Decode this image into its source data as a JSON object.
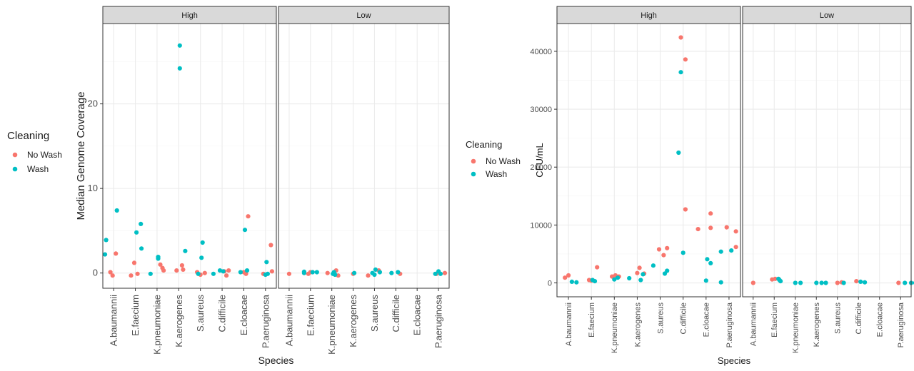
{
  "colors": {
    "no_wash": "#F8766D",
    "wash": "#00BFC4",
    "panel_bg": "#ffffff",
    "grid_major": "#ebebeb",
    "grid_minor": "#f5f5f5",
    "strip_bg": "#d9d9d9",
    "border": "#333333"
  },
  "chart_data": [
    {
      "type": "scatter",
      "xlabel": "Species",
      "ylabel": "Median Genome Coverage",
      "ylim": [
        -1.8,
        29.5
      ],
      "yticks": [
        0,
        10,
        20
      ],
      "grid": true,
      "legend": {
        "title": "Cleaning",
        "position": "left",
        "entries": [
          "No Wash",
          "Wash"
        ]
      },
      "categories": [
        "A.baumannii",
        "E.faecium",
        "K.pneumoniae",
        "K.aerogenes",
        "S.aureus",
        "C.difficile",
        "E.cloacae",
        "P.aeruginosa"
      ],
      "facets": [
        {
          "label": "High",
          "series": [
            {
              "name": "No Wash",
              "points": [
                [
                  "A.baumannii",
                  -0.15,
                  0.1
                ],
                [
                  "A.baumannii",
                  -0.05,
                  -0.3
                ],
                [
                  "A.baumannii",
                  0.1,
                  2.3
                ],
                [
                  "E.faecium",
                  -0.2,
                  -0.3
                ],
                [
                  "E.faecium",
                  -0.05,
                  1.2
                ],
                [
                  "E.faecium",
                  0.1,
                  -0.1
                ],
                [
                  "K.pneumoniae",
                  0.15,
                  1.0
                ],
                [
                  "K.pneumoniae",
                  0.25,
                  0.6
                ],
                [
                  "K.pneumoniae",
                  0.3,
                  0.3
                ],
                [
                  "K.aerogenes",
                  -0.1,
                  0.3
                ],
                [
                  "K.aerogenes",
                  0.15,
                  0.9
                ],
                [
                  "K.aerogenes",
                  0.2,
                  0.4
                ],
                [
                  "S.aureus",
                  -0.15,
                  0.1
                ],
                [
                  "S.aureus",
                  0.0,
                  -0.2
                ],
                [
                  "S.aureus",
                  0.2,
                  0.0
                ],
                [
                  "C.difficile",
                  0.1,
                  0.2
                ],
                [
                  "C.difficile",
                  0.2,
                  -0.3
                ],
                [
                  "C.difficile",
                  0.3,
                  0.3
                ],
                [
                  "E.cloacae",
                  0.0,
                  0.1
                ],
                [
                  "E.cloacae",
                  0.1,
                  -0.1
                ],
                [
                  "E.cloacae",
                  0.2,
                  6.7
                ],
                [
                  "P.aeruginosa",
                  -0.1,
                  -0.1
                ],
                [
                  "P.aeruginosa",
                  0.25,
                  3.3
                ],
                [
                  "P.aeruginosa",
                  0.3,
                  0.2
                ]
              ]
            },
            {
              "name": "Wash",
              "points": [
                [
                  "A.baumannii",
                  -0.4,
                  2.2
                ],
                [
                  "A.baumannii",
                  -0.35,
                  3.9
                ],
                [
                  "A.baumannii",
                  0.15,
                  7.4
                ],
                [
                  "E.faecium",
                  0.05,
                  4.8
                ],
                [
                  "E.faecium",
                  0.25,
                  5.8
                ],
                [
                  "E.faecium",
                  0.28,
                  2.9
                ],
                [
                  "K.pneumoniae",
                  -0.3,
                  -0.1
                ],
                [
                  "K.pneumoniae",
                  0.05,
                  1.7
                ],
                [
                  "K.pneumoniae",
                  0.05,
                  1.9
                ],
                [
                  "K.aerogenes",
                  0.05,
                  26.9
                ],
                [
                  "K.aerogenes",
                  0.05,
                  24.2
                ],
                [
                  "K.aerogenes",
                  0.3,
                  2.6
                ],
                [
                  "S.aureus",
                  0.05,
                  1.8
                ],
                [
                  "S.aureus",
                  0.1,
                  3.6
                ],
                [
                  "S.aureus",
                  -0.1,
                  -0.1
                ],
                [
                  "C.difficile",
                  -0.4,
                  -0.1
                ],
                [
                  "C.difficile",
                  -0.1,
                  0.3
                ],
                [
                  "C.difficile",
                  0.05,
                  0.2
                ],
                [
                  "E.cloacae",
                  -0.15,
                  0.1
                ],
                [
                  "E.cloacae",
                  0.05,
                  5.1
                ],
                [
                  "E.cloacae",
                  0.15,
                  0.3
                ],
                [
                  "P.aeruginosa",
                  0.0,
                  -0.2
                ],
                [
                  "P.aeruginosa",
                  0.05,
                  1.3
                ],
                [
                  "P.aeruginosa",
                  0.1,
                  -0.1
                ]
              ]
            }
          ]
        },
        {
          "label": "Low",
          "series": [
            {
              "name": "No Wash",
              "points": [
                [
                  "A.baumannii",
                  0.0,
                  -0.1
                ],
                [
                  "E.faecium",
                  -0.1,
                  -0.1
                ],
                [
                  "E.faecium",
                  0.0,
                  0.1
                ],
                [
                  "K.pneumoniae",
                  -0.2,
                  0.0
                ],
                [
                  "K.pneumoniae",
                  0.2,
                  0.3
                ],
                [
                  "K.pneumoniae",
                  0.3,
                  -0.3
                ],
                [
                  "K.aerogenes",
                  0.0,
                  -0.1
                ],
                [
                  "S.aureus",
                  -0.3,
                  -0.3
                ],
                [
                  "S.aureus",
                  0.2,
                  0.3
                ],
                [
                  "C.difficile",
                  0.2,
                  -0.1
                ],
                [
                  "P.aeruginosa",
                  -0.1,
                  -0.1
                ],
                [
                  "P.aeruginosa",
                  0.3,
                  0.0
                ]
              ]
            },
            {
              "name": "Wash",
              "points": [
                [
                  "E.faecium",
                  -0.3,
                  0.0
                ],
                [
                  "E.faecium",
                  -0.3,
                  0.15
                ],
                [
                  "E.faecium",
                  0.1,
                  0.1
                ],
                [
                  "E.faecium",
                  0.3,
                  0.1
                ],
                [
                  "K.pneumoniae",
                  0.05,
                  -0.1
                ],
                [
                  "K.pneumoniae",
                  0.1,
                  0.1
                ],
                [
                  "K.pneumoniae",
                  0.15,
                  -0.2
                ],
                [
                  "K.aerogenes",
                  0.05,
                  0.0
                ],
                [
                  "S.aureus",
                  -0.1,
                  0.0
                ],
                [
                  "S.aureus",
                  0.05,
                  0.4
                ],
                [
                  "S.aureus",
                  0.25,
                  0.1
                ],
                [
                  "S.aureus",
                  0.0,
                  -0.2
                ],
                [
                  "C.difficile",
                  -0.2,
                  0.0
                ],
                [
                  "C.difficile",
                  0.1,
                  0.1
                ],
                [
                  "P.aeruginosa",
                  0.0,
                  0.2
                ],
                [
                  "P.aeruginosa",
                  0.1,
                  -0.1
                ],
                [
                  "P.aeruginosa",
                  -0.15,
                  -0.1
                ]
              ]
            }
          ]
        }
      ]
    },
    {
      "type": "scatter",
      "xlabel": "Species",
      "ylabel": "CFU/mL",
      "ylim": [
        -2400,
        44800
      ],
      "yticks": [
        0,
        10000,
        20000,
        30000,
        40000
      ],
      "grid": true,
      "legend": {
        "title": "Cleaning",
        "position": "left",
        "entries": [
          "No Wash",
          "Wash"
        ]
      },
      "categories": [
        "A.baumannii",
        "E.faecium",
        "K.pneumoniae",
        "K.aerogenes",
        "S.aureus",
        "C.difficile",
        "E.cloacae",
        "P.aeruginosa"
      ],
      "facets": [
        {
          "label": "High",
          "series": [
            {
              "name": "No Wash",
              "points": [
                [
                  "A.baumannii",
                  -0.15,
                  900
                ],
                [
                  "A.baumannii",
                  0.0,
                  1300
                ],
                [
                  "E.faecium",
                  -0.1,
                  500
                ],
                [
                  "E.faecium",
                  0.0,
                  400
                ],
                [
                  "E.faecium",
                  0.25,
                  2700
                ],
                [
                  "K.pneumoniae",
                  -0.1,
                  1100
                ],
                [
                  "K.pneumoniae",
                  0.05,
                  1300
                ],
                [
                  "K.pneumoniae",
                  0.2,
                  1100
                ],
                [
                  "K.aerogenes",
                  0.0,
                  1700
                ],
                [
                  "K.aerogenes",
                  0.1,
                  2600
                ],
                [
                  "K.aerogenes",
                  0.3,
                  1600
                ],
                [
                  "S.aureus",
                  -0.05,
                  5800
                ],
                [
                  "S.aureus",
                  0.15,
                  4800
                ],
                [
                  "S.aureus",
                  0.3,
                  6000
                ],
                [
                  "C.difficile",
                  -0.1,
                  42400
                ],
                [
                  "C.difficile",
                  0.1,
                  38600
                ],
                [
                  "C.difficile",
                  0.1,
                  12700
                ],
                [
                  "E.cloacae",
                  -0.35,
                  9300
                ],
                [
                  "E.cloacae",
                  0.2,
                  12000
                ],
                [
                  "E.cloacae",
                  0.2,
                  9500
                ],
                [
                  "P.aeruginosa",
                  -0.1,
                  9600
                ],
                [
                  "P.aeruginosa",
                  0.3,
                  8900
                ],
                [
                  "P.aeruginosa",
                  0.3,
                  6200
                ]
              ]
            },
            {
              "name": "Wash",
              "points": [
                [
                  "A.baumannii",
                  0.15,
                  200
                ],
                [
                  "A.baumannii",
                  0.35,
                  100
                ],
                [
                  "E.faecium",
                  0.15,
                  300
                ],
                [
                  "E.faecium",
                  0.05,
                  500
                ],
                [
                  "K.pneumoniae",
                  0.0,
                  600
                ],
                [
                  "K.pneumoniae",
                  0.15,
                  900
                ],
                [
                  "K.aerogenes",
                  -0.35,
                  800
                ],
                [
                  "K.aerogenes",
                  0.15,
                  500
                ],
                [
                  "K.aerogenes",
                  0.25,
                  1500
                ],
                [
                  "S.aureus",
                  -0.3,
                  3000
                ],
                [
                  "S.aureus",
                  0.2,
                  1600
                ],
                [
                  "S.aureus",
                  0.3,
                  2100
                ],
                [
                  "C.difficile",
                  -0.2,
                  22500
                ],
                [
                  "C.difficile",
                  -0.1,
                  36400
                ],
                [
                  "C.difficile",
                  0.0,
                  5200
                ],
                [
                  "E.cloacae",
                  0.0,
                  400
                ],
                [
                  "E.cloacae",
                  0.05,
                  4100
                ],
                [
                  "E.cloacae",
                  0.2,
                  3400
                ],
                [
                  "P.aeruginosa",
                  -0.35,
                  5400
                ],
                [
                  "P.aeruginosa",
                  0.1,
                  5600
                ],
                [
                  "P.aeruginosa",
                  -0.35,
                  100
                ]
              ]
            }
          ]
        },
        {
          "label": "Low",
          "series": [
            {
              "name": "No Wash",
              "points": [
                [
                  "A.baumannii",
                  0.0,
                  0
                ],
                [
                  "E.faecium",
                  -0.1,
                  600
                ],
                [
                  "E.faecium",
                  0.05,
                  700
                ],
                [
                  "S.aureus",
                  0.0,
                  0
                ],
                [
                  "S.aureus",
                  0.2,
                  100
                ],
                [
                  "C.difficile",
                  -0.1,
                  300
                ],
                [
                  "P.aeruginosa",
                  -0.1,
                  0
                ]
              ]
            },
            {
              "name": "Wash",
              "points": [
                [
                  "E.faecium",
                  0.2,
                  700
                ],
                [
                  "E.faecium",
                  0.3,
                  300
                ],
                [
                  "E.faecium",
                  0.25,
                  500
                ],
                [
                  "K.pneumoniae",
                  0.0,
                  0
                ],
                [
                  "K.pneumoniae",
                  0.25,
                  0
                ],
                [
                  "K.aerogenes",
                  0.0,
                  0
                ],
                [
                  "K.aerogenes",
                  0.25,
                  0
                ],
                [
                  "K.aerogenes",
                  0.45,
                  0
                ],
                [
                  "S.aureus",
                  0.3,
                  0
                ],
                [
                  "C.difficile",
                  0.1,
                  200
                ],
                [
                  "C.difficile",
                  0.3,
                  100
                ],
                [
                  "P.aeruginosa",
                  0.2,
                  0
                ],
                [
                  "P.aeruginosa",
                  0.5,
                  0
                ],
                [
                  "P.aeruginosa",
                  0.7,
                  0
                ]
              ]
            }
          ]
        }
      ]
    }
  ]
}
